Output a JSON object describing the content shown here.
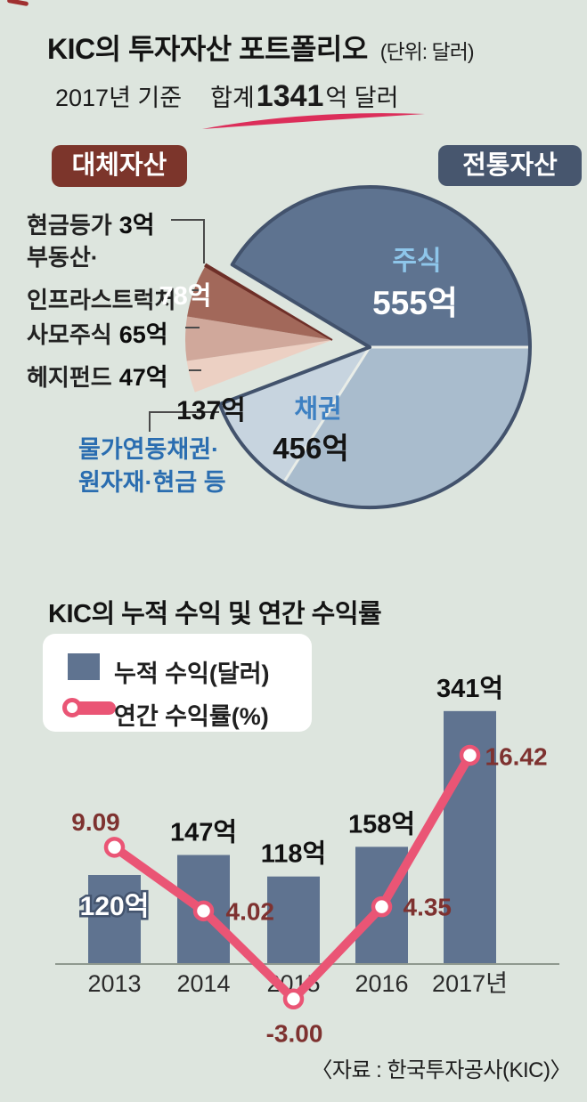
{
  "portfolio": {
    "title": "KIC의 투자자산 포트폴리오",
    "unit_note": "(단위: 달러)",
    "basis": "2017년 기준",
    "total_label": "합계",
    "total_value": "1341",
    "total_unit": "억 달러",
    "badge_alternative": "대체자산",
    "badge_traditional": "전통자산",
    "callouts": [
      {
        "line1": "현금등가",
        "amount": "3억"
      },
      {
        "line1": "부동산·",
        "line2": "인프라스트럭처",
        "amount": "78억"
      },
      {
        "line1": "사모주식",
        "amount": "65억"
      },
      {
        "line1": "헤지펀드",
        "amount": "47억"
      }
    ],
    "linked_label": {
      "line1": "물가연동채권·",
      "line2": "원자재·현금 등"
    }
  },
  "returns": {
    "title": "KIC의 누적 수익 및 연간 수익률",
    "legend_bar": "누적 수익(달러)",
    "legend_line": "연간 수익률(%)",
    "source": "〈자료 : 한국투자공사(KIC)〉"
  },
  "colors": {
    "background": "#dde5de",
    "badge_alternative": "#7c352b",
    "badge_traditional": "#47566e",
    "pie_outline": "#42526c",
    "bar": "#5f7390",
    "line": "#ea5575",
    "line_value_text": "#7e3230",
    "swoosh": "#dc2e5a"
  },
  "chart_data": [
    {
      "type": "pie",
      "title": "KIC의 투자자산 포트폴리오",
      "unit": "억 달러",
      "total": 1341,
      "year": "2017",
      "groups": [
        "전통자산",
        "대체자산"
      ],
      "slices": [
        {
          "label": "주식",
          "value": 555,
          "amount": "555억",
          "group": "전통자산",
          "color": "#5e7390"
        },
        {
          "label": "채권",
          "value": 456,
          "amount": "456억",
          "group": "전통자산",
          "color": "#a9bccd"
        },
        {
          "label": "물가연동채권·원자재·현금 등",
          "value": 137,
          "amount": "137억",
          "group": "전통자산",
          "color": "#c7d4df"
        },
        {
          "label": "헤지펀드",
          "value": 47,
          "amount": "47억",
          "group": "대체자산",
          "color": "#ecd0c3"
        },
        {
          "label": "사모주식",
          "value": 65,
          "amount": "65억",
          "group": "대체자산",
          "color": "#d0a89b"
        },
        {
          "label": "부동산·인프라스트럭처",
          "value": 78,
          "amount": "78억",
          "group": "대체자산",
          "color": "#a2685a"
        },
        {
          "label": "현금등가",
          "value": 3,
          "amount": "3억",
          "group": "대체자산",
          "color": "#6e2f28"
        }
      ]
    },
    {
      "type": "bar+line",
      "title": "KIC의 누적 수익 및 연간 수익률",
      "categories": [
        "2013",
        "2014",
        "2015",
        "2016",
        "2017년"
      ],
      "series": [
        {
          "name": "누적 수익(달러)",
          "type": "bar",
          "unit_suffix": "억",
          "values": [
            120,
            147,
            118,
            158,
            341
          ],
          "color": "#5f7390"
        },
        {
          "name": "연간 수익률(%)",
          "type": "line",
          "values": [
            9.09,
            4.02,
            -3.0,
            4.35,
            16.42
          ],
          "color": "#ea5575"
        }
      ],
      "ylim_bar": [
        0,
        360
      ],
      "grid": false,
      "legend_position": "top-left"
    }
  ]
}
